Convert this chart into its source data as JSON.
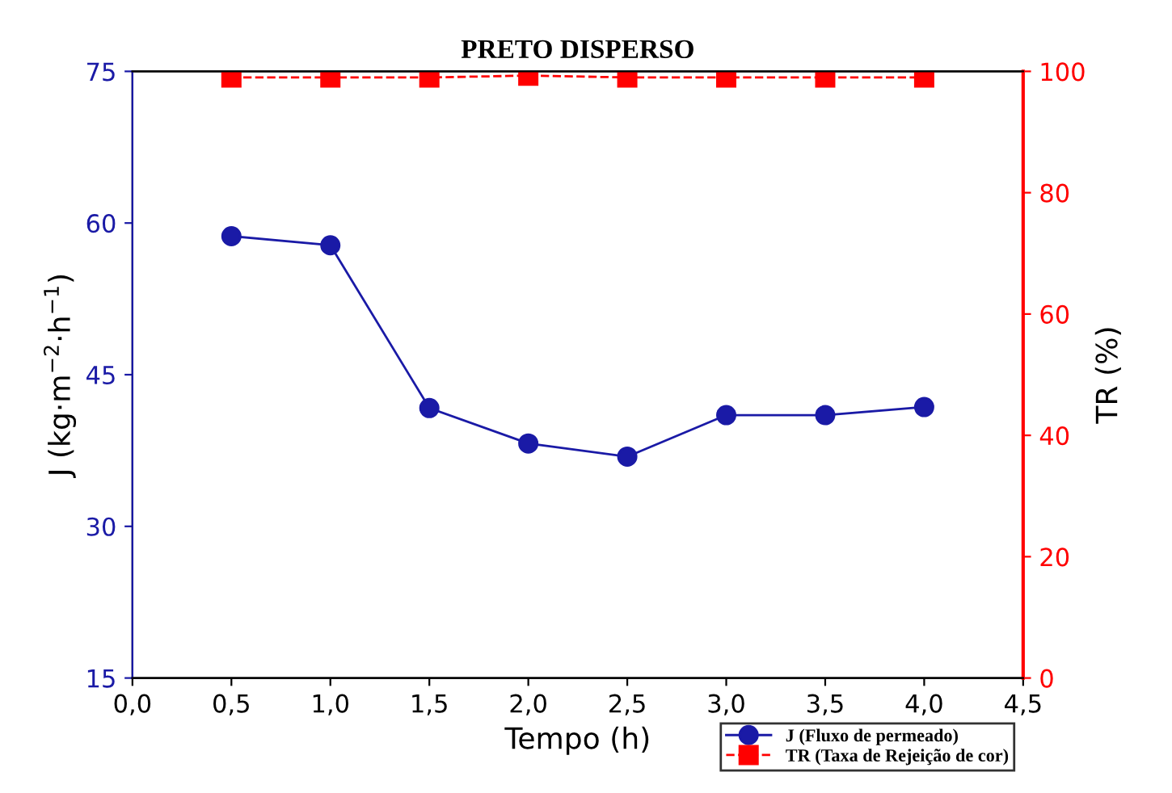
{
  "chart_data": {
    "type": "line",
    "title": "PRETO DISPERSO",
    "xlabel": "Tempo (h)",
    "ylabel": "J (kg·m$^{−2}$·h$^{−1}$)",
    "y2label": "TR (%)",
    "x": [
      0.5,
      1.0,
      1.5,
      2.0,
      2.5,
      3.0,
      3.5,
      4.0
    ],
    "series": [
      {
        "name": "J (Fluxo de permeado)",
        "color": "#1a1aa6",
        "values": [
          58.7,
          57.8,
          41.7,
          38.2,
          36.9,
          41.0,
          41.0,
          41.8
        ],
        "marker": "circle",
        "line_style": "solid"
      },
      {
        "name": "TR (Taxa de Rejeição de cor)",
        "color": "#ff0000",
        "axis": "y2",
        "values": [
          99,
          99,
          99,
          99.3,
          99,
          99,
          99,
          99
        ],
        "marker": "square",
        "line_style": "dashed"
      }
    ],
    "xlim": [
      0,
      4.5
    ],
    "xticks": [
      {
        "value": 0,
        "label": "0,0"
      },
      {
        "value": 0.5,
        "label": "0,5"
      },
      {
        "value": 1,
        "label": "1,0"
      },
      {
        "value": 1.5,
        "label": "1,5"
      },
      {
        "value": 2,
        "label": "2,0"
      },
      {
        "value": 2.5,
        "label": "2,5"
      },
      {
        "value": 3,
        "label": "3,0"
      },
      {
        "value": 3.5,
        "label": "3,5"
      },
      {
        "value": 4,
        "label": "4,0"
      },
      {
        "value": 4.5,
        "label": "4,5"
      }
    ],
    "ylim": [
      15,
      75
    ],
    "yticks": [
      15,
      30,
      45,
      60,
      75
    ],
    "y2lim": [
      0,
      100
    ],
    "y2ticks": [
      0,
      20,
      40,
      60,
      80,
      100
    ],
    "legend": "bottom right",
    "grid": false
  }
}
